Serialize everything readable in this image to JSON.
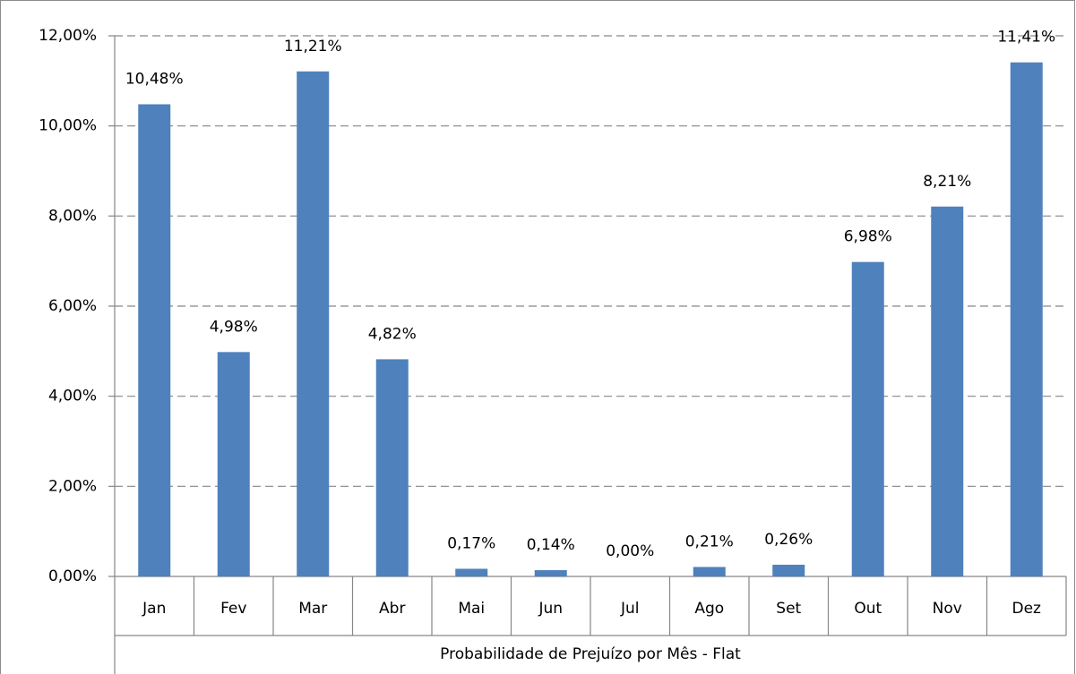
{
  "chart_data": {
    "type": "bar",
    "xlabel": "Probabilidade de Prejuízo por Mês - Flat",
    "categories": [
      "Jan",
      "Fev",
      "Mar",
      "Abr",
      "Mai",
      "Jun",
      "Jul",
      "Ago",
      "Set",
      "Out",
      "Nov",
      "Dez"
    ],
    "values": [
      10.48,
      4.98,
      11.21,
      4.82,
      0.17,
      0.14,
      0.0,
      0.21,
      0.26,
      6.98,
      8.21,
      11.41
    ],
    "value_labels": [
      "10,48%",
      "4,98%",
      "11,21%",
      "4,82%",
      "0,17%",
      "0,14%",
      "0,00%",
      "0,21%",
      "0,26%",
      "6,98%",
      "8,21%",
      "11,41%"
    ],
    "color": "#4f81bd",
    "ylim": [
      0,
      12
    ],
    "yticks": [
      {
        "value": 0,
        "label": "0,00%"
      },
      {
        "value": 2,
        "label": "2,00%"
      },
      {
        "value": 4,
        "label": "4,00%"
      },
      {
        "value": 6,
        "label": "6,00%"
      },
      {
        "value": 8,
        "label": "8,00%"
      },
      {
        "value": 10,
        "label": "10,00%"
      },
      {
        "value": 12,
        "label": "12,00%"
      }
    ],
    "grid": true
  }
}
